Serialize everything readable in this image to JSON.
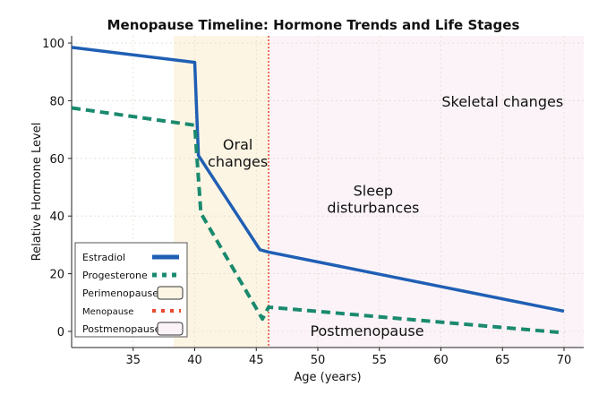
{
  "chart_data": {
    "type": "line",
    "title": "Menopause Timeline: Hormone Trends and Life Stages",
    "xlabel": "Age (years)",
    "ylabel": "Relative Hormone Level",
    "xlim": [
      30,
      71.6
    ],
    "ylim": [
      -5.6,
      102.5
    ],
    "xticks": [
      35,
      40,
      45,
      50,
      55,
      60,
      65,
      70
    ],
    "yticks": [
      0,
      20,
      40,
      60,
      80,
      100
    ],
    "grid": true,
    "legend_placement": "lower-left",
    "series": [
      {
        "name": "Estradiol",
        "color": "#1f5fb4",
        "style": "solid",
        "x": [
          30,
          40,
          40.3,
          45.3,
          46,
          70
        ],
        "y": [
          98.5,
          93.3,
          61,
          28.3,
          27.5,
          7
        ]
      },
      {
        "name": "Progesterone",
        "color": "#1a8a6e",
        "style": "dashed",
        "x": [
          30,
          40,
          40.5,
          45.5,
          46,
          70
        ],
        "y": [
          77.5,
          71.5,
          41,
          4.3,
          8.4,
          -0.5
        ]
      }
    ],
    "regions": [
      {
        "name": "Perimenopause",
        "x": [
          38.3,
          46
        ],
        "color": "#fdf5e4"
      },
      {
        "name": "Postmenopause",
        "x": [
          46,
          71.6
        ],
        "color": "#fbf3f8"
      }
    ],
    "vlines": [
      {
        "name": "Menopause",
        "x": 46,
        "color": "#e8492f",
        "style": "dotted"
      }
    ],
    "annotations": [
      {
        "text": [
          "Oral",
          "changes"
        ],
        "x": 43.5,
        "y": 63
      },
      {
        "text": [
          "Sleep",
          "disturbances"
        ],
        "x": 54.5,
        "y": 47
      },
      {
        "text": [
          "Skeletal changes"
        ],
        "x": 65,
        "y": 78
      },
      {
        "text": [
          "Postmenopause"
        ],
        "x": 54,
        "y": -1.5
      }
    ],
    "legend": [
      "Estradiol",
      "Progesterone",
      "Perimenopause",
      "Menopause",
      "Postmenopause"
    ]
  }
}
